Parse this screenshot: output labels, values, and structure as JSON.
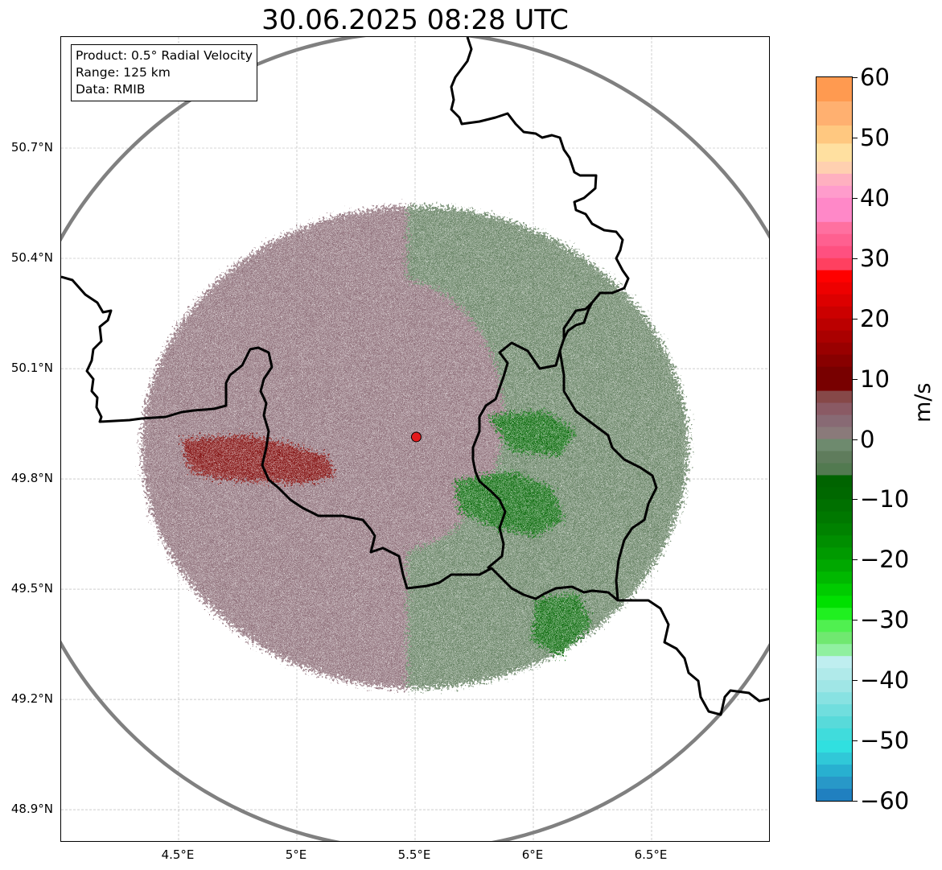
{
  "title": "30.06.2025 08:28 UTC",
  "info": {
    "product": "Product: 0.5° Radial Velocity",
    "range": "Range: 125 km",
    "source": "Data: RMIB"
  },
  "map": {
    "lon_range": [
      4.0,
      7.0
    ],
    "lat_range": [
      48.8,
      51.0
    ],
    "radar_site": {
      "lon": 5.505,
      "lat": 49.914
    },
    "range_ring_km": 125,
    "lat_ticks": [
      {
        "value": 50.7,
        "label": "50.7°N"
      },
      {
        "value": 50.4,
        "label": "50.4°N"
      },
      {
        "value": 50.1,
        "label": "50.1°N"
      },
      {
        "value": 49.8,
        "label": "49.8°N"
      },
      {
        "value": 49.5,
        "label": "49.5°N"
      },
      {
        "value": 49.2,
        "label": "49.2°N"
      },
      {
        "value": 48.9,
        "label": "48.9°N"
      }
    ],
    "lon_ticks": [
      {
        "value": 4.5,
        "label": "4.5°E"
      },
      {
        "value": 5.0,
        "label": "5°E"
      },
      {
        "value": 5.5,
        "label": "5.5°E"
      },
      {
        "value": 6.0,
        "label": "6°E"
      },
      {
        "value": 6.5,
        "label": "6.5°E"
      }
    ],
    "colors": {
      "receding_weak": "#8a6a74",
      "receding_strong": "#7a0000",
      "approaching_weak": "#5f7c5c",
      "approaching_strong": "#006400",
      "ring": "#808080",
      "site": "#e31a1c",
      "border": "#000000",
      "grid": "#b0b0b0"
    }
  },
  "colorbar": {
    "unit": "m/s",
    "vmin": -60,
    "vmax": 60,
    "ticks": [
      {
        "value": 60,
        "label": "60"
      },
      {
        "value": 50,
        "label": "50"
      },
      {
        "value": 40,
        "label": "40"
      },
      {
        "value": 30,
        "label": "30"
      },
      {
        "value": 20,
        "label": "20"
      },
      {
        "value": 10,
        "label": "10"
      },
      {
        "value": 0,
        "label": "0"
      },
      {
        "value": -10,
        "label": "−10"
      },
      {
        "value": -20,
        "label": "−20"
      },
      {
        "value": -30,
        "label": "−30"
      },
      {
        "value": -40,
        "label": "−40"
      },
      {
        "value": -50,
        "label": "−50"
      },
      {
        "value": -60,
        "label": "−60"
      }
    ],
    "bands": [
      {
        "from": 56,
        "to": 60,
        "color": "#ff9a50"
      },
      {
        "from": 52,
        "to": 56,
        "color": "#ffb070"
      },
      {
        "from": 49,
        "to": 52,
        "color": "#ffc880"
      },
      {
        "from": 46,
        "to": 49,
        "color": "#ffe0a0"
      },
      {
        "from": 44,
        "to": 46,
        "color": "#ffd0b0"
      },
      {
        "from": 42,
        "to": 44,
        "color": "#ffb0c0"
      },
      {
        "from": 40,
        "to": 42,
        "color": "#ff9ccc"
      },
      {
        "from": 36,
        "to": 40,
        "color": "#ff88c8"
      },
      {
        "from": 34,
        "to": 36,
        "color": "#ff70a0"
      },
      {
        "from": 32,
        "to": 34,
        "color": "#ff6090"
      },
      {
        "from": 30,
        "to": 32,
        "color": "#ff5080"
      },
      {
        "from": 28,
        "to": 30,
        "color": "#ff4060"
      },
      {
        "from": 26,
        "to": 28,
        "color": "#ff0000"
      },
      {
        "from": 24,
        "to": 26,
        "color": "#ee0000"
      },
      {
        "from": 22,
        "to": 24,
        "color": "#dd0000"
      },
      {
        "from": 20,
        "to": 22,
        "color": "#cc0000"
      },
      {
        "from": 18,
        "to": 20,
        "color": "#bb0000"
      },
      {
        "from": 16,
        "to": 18,
        "color": "#aa0000"
      },
      {
        "from": 14,
        "to": 16,
        "color": "#990000"
      },
      {
        "from": 12,
        "to": 14,
        "color": "#880000"
      },
      {
        "from": 8,
        "to": 12,
        "color": "#780000"
      },
      {
        "from": 6,
        "to": 8,
        "color": "#864848"
      },
      {
        "from": 4,
        "to": 6,
        "color": "#8a5a64"
      },
      {
        "from": 2,
        "to": 4,
        "color": "#886a74"
      },
      {
        "from": 0,
        "to": 2,
        "color": "#8a7a7a"
      },
      {
        "from": -2,
        "to": 0,
        "color": "#6e8a6e"
      },
      {
        "from": -4,
        "to": -2,
        "color": "#5f7c5c"
      },
      {
        "from": -6,
        "to": -4,
        "color": "#527a50"
      },
      {
        "from": -8,
        "to": -6,
        "color": "#006400"
      },
      {
        "from": -10,
        "to": -8,
        "color": "#006800"
      },
      {
        "from": -12,
        "to": -10,
        "color": "#007000"
      },
      {
        "from": -14,
        "to": -12,
        "color": "#007800"
      },
      {
        "from": -16,
        "to": -14,
        "color": "#008200"
      },
      {
        "from": -18,
        "to": -16,
        "color": "#008e00"
      },
      {
        "from": -20,
        "to": -18,
        "color": "#009a00"
      },
      {
        "from": -22,
        "to": -20,
        "color": "#00a800"
      },
      {
        "from": -24,
        "to": -22,
        "color": "#00b800"
      },
      {
        "from": -26,
        "to": -24,
        "color": "#00cc00"
      },
      {
        "from": -28,
        "to": -26,
        "color": "#00e000"
      },
      {
        "from": -30,
        "to": -28,
        "color": "#20f020"
      },
      {
        "from": -32,
        "to": -30,
        "color": "#50f050"
      },
      {
        "from": -34,
        "to": -32,
        "color": "#70e870"
      },
      {
        "from": -36,
        "to": -34,
        "color": "#90f0a0"
      },
      {
        "from": -38,
        "to": -36,
        "color": "#bfeef0"
      },
      {
        "from": -40,
        "to": -38,
        "color": "#b0eaea"
      },
      {
        "from": -42,
        "to": -40,
        "color": "#a0e6e6"
      },
      {
        "from": -44,
        "to": -42,
        "color": "#88e2e2"
      },
      {
        "from": -46,
        "to": -44,
        "color": "#70dede"
      },
      {
        "from": -48,
        "to": -46,
        "color": "#58dada"
      },
      {
        "from": -50,
        "to": -48,
        "color": "#40dcdc"
      },
      {
        "from": -52,
        "to": -50,
        "color": "#30e0e0"
      },
      {
        "from": -54,
        "to": -52,
        "color": "#30c8d8"
      },
      {
        "from": -56,
        "to": -54,
        "color": "#28b0d0"
      },
      {
        "from": -58,
        "to": -56,
        "color": "#2898c8"
      },
      {
        "from": -60,
        "to": -58,
        "color": "#2080c0"
      }
    ]
  }
}
